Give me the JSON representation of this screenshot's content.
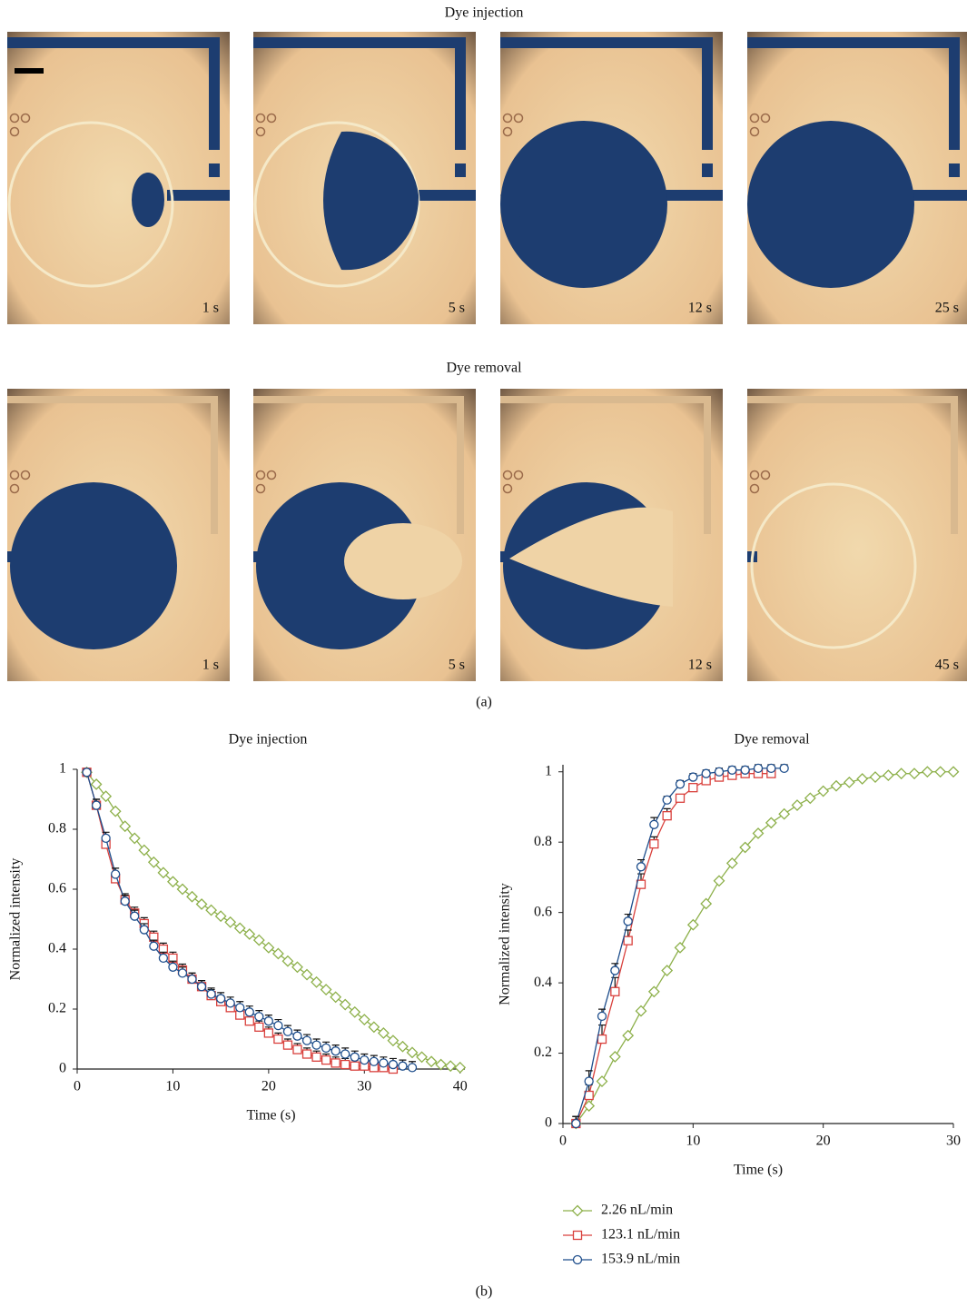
{
  "figure_a": {
    "label": "(a)",
    "rows": [
      {
        "title": "Dye injection",
        "panels": [
          "1 s",
          "5 s",
          "12 s",
          "25 s"
        ]
      },
      {
        "title": "Dye removal",
        "panels": [
          "1 s",
          "5 s",
          "12 s",
          "45 s"
        ]
      }
    ]
  },
  "figure_b": {
    "label": "(b)"
  },
  "chart_data": [
    {
      "type": "line",
      "title": "Dye injection",
      "x_label": "Time (s)",
      "y_label": "Normalized intensity",
      "xlim": [
        0,
        40.5
      ],
      "ylim": [
        0,
        1
      ],
      "xticks": [
        0,
        10,
        20,
        30,
        40
      ],
      "yticks": [
        0,
        0.2,
        0.4,
        0.6,
        0.8,
        1
      ],
      "series": [
        {
          "color": "#8db04a",
          "marker": "diamond",
          "x": [
            1,
            2,
            3,
            4,
            5,
            6,
            7,
            8,
            9,
            10,
            11,
            12,
            13,
            14,
            15,
            16,
            17,
            18,
            19,
            20,
            21,
            22,
            23,
            24,
            25,
            26,
            27,
            28,
            29,
            30,
            31,
            32,
            33,
            34,
            35,
            36,
            37,
            38,
            39,
            40
          ],
          "values": [
            0.99,
            0.95,
            0.91,
            0.86,
            0.81,
            0.77,
            0.73,
            0.69,
            0.655,
            0.625,
            0.6,
            0.575,
            0.55,
            0.53,
            0.51,
            0.49,
            0.47,
            0.45,
            0.43,
            0.405,
            0.385,
            0.36,
            0.34,
            0.315,
            0.29,
            0.265,
            0.24,
            0.215,
            0.19,
            0.165,
            0.14,
            0.12,
            0.095,
            0.075,
            0.055,
            0.04,
            0.025,
            0.015,
            0.01,
            0.005
          ]
        },
        {
          "color": "#d9413d",
          "marker": "square",
          "x": [
            1,
            2,
            3,
            4,
            5,
            6,
            7,
            8,
            9,
            10,
            11,
            12,
            13,
            14,
            15,
            16,
            17,
            18,
            19,
            20,
            21,
            22,
            23,
            24,
            25,
            26,
            27,
            28,
            29,
            30,
            31,
            32,
            33
          ],
          "values": [
            0.99,
            0.88,
            0.75,
            0.635,
            0.565,
            0.52,
            0.485,
            0.44,
            0.4,
            0.37,
            0.33,
            0.3,
            0.275,
            0.245,
            0.225,
            0.205,
            0.18,
            0.16,
            0.14,
            0.12,
            0.1,
            0.08,
            0.065,
            0.05,
            0.04,
            0.03,
            0.02,
            0.015,
            0.01,
            0.01,
            0.005,
            0.005,
            0
          ],
          "errors": [
            0.01,
            0.02,
            0.02,
            0.02,
            0.02,
            0.02,
            0.02,
            0.02,
            0.02,
            0.02,
            0.02,
            0.02,
            0.02,
            0.02,
            0.02,
            0.02,
            0.02,
            0.02,
            0.02,
            0.02,
            0.02,
            0.02,
            0.02,
            0.02,
            0.02,
            0.02,
            0.02,
            0.02,
            0.02,
            0.02,
            0.02,
            0.02,
            0.02
          ]
        },
        {
          "color": "#1e4e8c",
          "marker": "circle",
          "x": [
            1,
            2,
            3,
            4,
            5,
            6,
            7,
            8,
            9,
            10,
            11,
            12,
            13,
            14,
            15,
            16,
            17,
            18,
            19,
            20,
            21,
            22,
            23,
            24,
            25,
            26,
            27,
            28,
            29,
            30,
            31,
            32,
            33,
            34,
            35
          ],
          "values": [
            0.99,
            0.88,
            0.77,
            0.65,
            0.56,
            0.51,
            0.465,
            0.41,
            0.37,
            0.34,
            0.32,
            0.3,
            0.275,
            0.25,
            0.235,
            0.22,
            0.205,
            0.19,
            0.175,
            0.16,
            0.145,
            0.125,
            0.11,
            0.095,
            0.08,
            0.07,
            0.06,
            0.05,
            0.04,
            0.03,
            0.025,
            0.02,
            0.015,
            0.01,
            0.005
          ],
          "errors": [
            0.01,
            0.02,
            0.02,
            0.02,
            0.02,
            0.02,
            0.02,
            0.02,
            0.02,
            0.02,
            0.02,
            0.02,
            0.02,
            0.02,
            0.02,
            0.02,
            0.02,
            0.02,
            0.02,
            0.02,
            0.02,
            0.02,
            0.02,
            0.02,
            0.02,
            0.02,
            0.02,
            0.02,
            0.02,
            0.02,
            0.02,
            0.02,
            0.02,
            0.02,
            0.02
          ]
        }
      ]
    },
    {
      "type": "line",
      "title": "Dye removal",
      "x_label": "Time (s)",
      "y_label": "Normalized intensity",
      "xlim": [
        0,
        30
      ],
      "ylim": [
        0,
        1.02
      ],
      "xticks": [
        0,
        10,
        20,
        30
      ],
      "yticks": [
        0,
        0.2,
        0.4,
        0.6,
        0.8,
        1
      ],
      "series": [
        {
          "name": "2.26 nL/min",
          "color": "#8db04a",
          "marker": "diamond",
          "x": [
            1,
            2,
            3,
            4,
            5,
            6,
            7,
            8,
            9,
            10,
            11,
            12,
            13,
            14,
            15,
            16,
            17,
            18,
            19,
            20,
            21,
            22,
            23,
            24,
            25,
            26,
            27,
            28,
            29,
            30
          ],
          "values": [
            0,
            0.05,
            0.12,
            0.19,
            0.25,
            0.32,
            0.375,
            0.435,
            0.5,
            0.565,
            0.625,
            0.69,
            0.74,
            0.785,
            0.825,
            0.855,
            0.88,
            0.905,
            0.925,
            0.945,
            0.96,
            0.97,
            0.98,
            0.985,
            0.99,
            0.995,
            0.995,
            1,
            1,
            1
          ]
        },
        {
          "name": "123.1 nL/min",
          "color": "#d9413d",
          "marker": "square",
          "x": [
            1,
            2,
            3,
            4,
            5,
            6,
            7,
            8,
            9,
            10,
            11,
            12,
            13,
            14,
            15,
            16
          ],
          "values": [
            0,
            0.08,
            0.24,
            0.375,
            0.52,
            0.68,
            0.795,
            0.875,
            0.925,
            0.955,
            0.975,
            0.985,
            0.99,
            0.995,
            0.995,
            0.995
          ],
          "errors": [
            0.02,
            0.03,
            0.04,
            0.04,
            0.03,
            0.03,
            0.02,
            0.02,
            0.01,
            0.01,
            0.01,
            0.01,
            0.01,
            0.01,
            0.01,
            0.01
          ]
        },
        {
          "name": "153.9 nL/min",
          "color": "#1e4e8c",
          "marker": "circle",
          "x": [
            1,
            2,
            3,
            4,
            5,
            6,
            7,
            8,
            9,
            10,
            11,
            12,
            13,
            14,
            15,
            16,
            17
          ],
          "values": [
            0,
            0.12,
            0.305,
            0.435,
            0.575,
            0.73,
            0.85,
            0.92,
            0.965,
            0.985,
            0.995,
            1,
            1.005,
            1.005,
            1.01,
            1.01,
            1.01
          ],
          "errors": [
            0.02,
            0.03,
            0.02,
            0.02,
            0.02,
            0.02,
            0.02,
            0.01,
            0.01,
            0.01,
            0.01,
            0.01,
            0.01,
            0.01,
            0.01,
            0.01,
            0.01
          ]
        }
      ]
    }
  ]
}
